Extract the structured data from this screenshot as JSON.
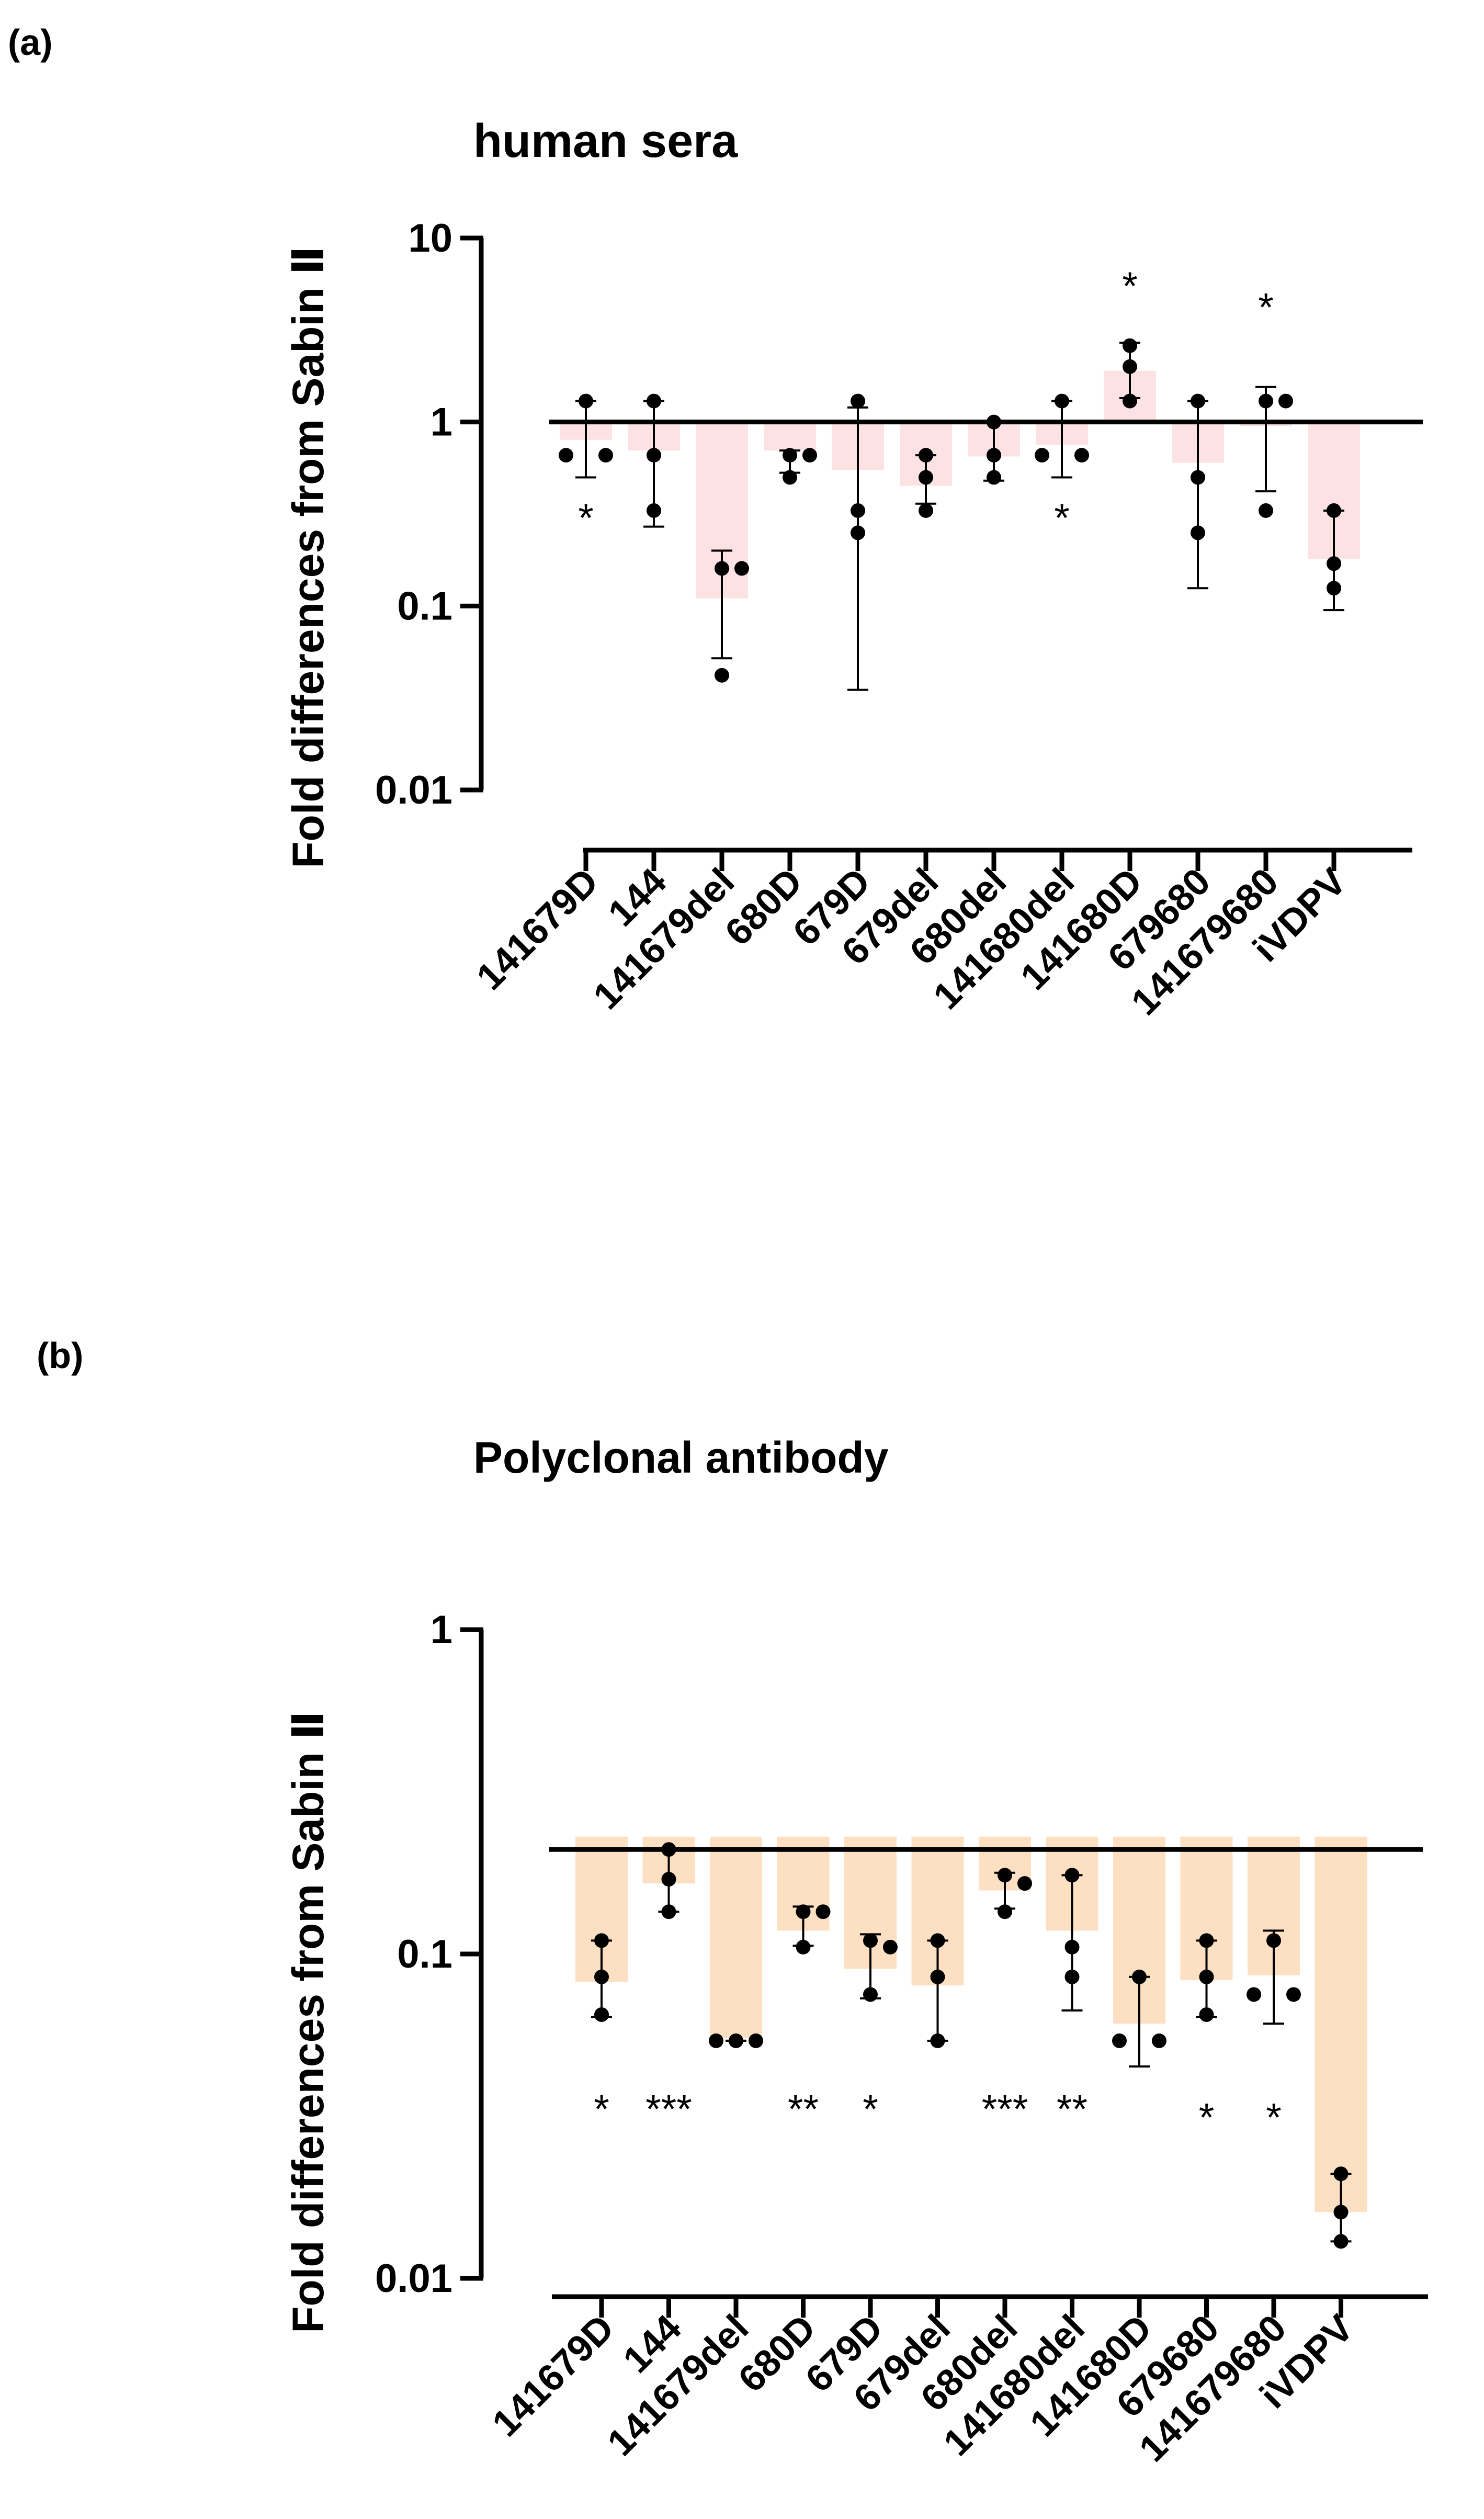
{
  "chart_data": [
    {
      "panel_label": "(a)",
      "type": "bar",
      "scale": "log",
      "title": "human sera",
      "ylabel": "Fold differences from Sabin Ⅱ",
      "xlabel": "",
      "ylim": [
        0.01,
        10
      ],
      "yticks": [
        "10",
        "1",
        "0.1",
        "0.01"
      ],
      "reference_line": 1,
      "bar_color": "#fde2e4",
      "bar_baseline": 1,
      "categories": [
        "141679D",
        "144",
        "141679del",
        "680D",
        "679D",
        "679del",
        "680del",
        "141680del",
        "141680D",
        "679680",
        "141679680",
        "iVDPV"
      ],
      "values": [
        0.8,
        0.7,
        0.11,
        0.7,
        0.55,
        0.45,
        0.65,
        0.75,
        1.9,
        0.6,
        0.95,
        0.18
      ],
      "points": [
        [
          1.3,
          0.66,
          0.66
        ],
        [
          1.3,
          0.66,
          0.33
        ],
        [
          0.16,
          0.16,
          0.042
        ],
        [
          0.66,
          0.66,
          0.5
        ],
        [
          1.3,
          0.33,
          0.25
        ],
        [
          0.66,
          0.5,
          0.33
        ],
        [
          1.0,
          0.66,
          0.5
        ],
        [
          1.3,
          0.66,
          0.66
        ],
        [
          2.6,
          2.0,
          1.3
        ],
        [
          1.3,
          0.5,
          0.25
        ],
        [
          1.3,
          1.3,
          0.33
        ],
        [
          0.33,
          0.17,
          0.125
        ]
      ],
      "err_low": [
        0.5,
        0.27,
        0.052,
        0.53,
        0.035,
        0.36,
        0.48,
        0.5,
        1.35,
        0.125,
        0.42,
        0.095
      ],
      "err_high": [
        1.3,
        1.3,
        0.2,
        0.7,
        1.2,
        0.66,
        1.0,
        1.3,
        2.7,
        1.3,
        1.55,
        0.33
      ],
      "annotations": [
        {
          "category": "141679D",
          "text": "*",
          "value": 0.33
        },
        {
          "category": "141680del",
          "text": "*",
          "value": 0.33
        },
        {
          "category": "141680D",
          "text": "*",
          "value": 6
        },
        {
          "category": "141679680",
          "text": "*",
          "value": 4.6
        }
      ]
    },
    {
      "panel_label": "(b)",
      "type": "bar",
      "scale": "log",
      "title": "Polyclonal antibody",
      "ylabel": "Fold differences from Sabin Ⅱ",
      "xlabel": "",
      "ylim": [
        0.01,
        1
      ],
      "yticks": [
        "1",
        "0.1",
        "0.01"
      ],
      "reference_line": 0.21,
      "bar_color": "#fde0c2",
      "bar_baseline": 0.23,
      "categories": [
        "141679D",
        "144",
        "141679del",
        "680D",
        "679D",
        "679del",
        "680del",
        "141680del",
        "141680D",
        "679680",
        "141679680",
        "iVDPV"
      ],
      "values": [
        0.082,
        0.165,
        0.055,
        0.118,
        0.09,
        0.08,
        0.157,
        0.118,
        0.061,
        0.083,
        0.086,
        0.016
      ],
      "points": [
        [
          0.11,
          0.085,
          0.065
        ],
        [
          0.21,
          0.17,
          0.135
        ],
        [
          0.054,
          0.054,
          0.054
        ],
        [
          0.135,
          0.135,
          0.105
        ],
        [
          0.11,
          0.105,
          0.075
        ],
        [
          0.11,
          0.085,
          0.054
        ],
        [
          0.175,
          0.165,
          0.135
        ],
        [
          0.175,
          0.105,
          0.085
        ],
        [
          0.085,
          0.054,
          0.054
        ],
        [
          0.11,
          0.085,
          0.065
        ],
        [
          0.11,
          0.075,
          0.075
        ],
        [
          0.021,
          0.016,
          0.013
        ]
      ],
      "err_low": [
        0.064,
        0.135,
        0.054,
        0.106,
        0.073,
        0.054,
        0.138,
        0.067,
        0.045,
        0.064,
        0.061,
        0.013
      ],
      "err_high": [
        0.11,
        0.21,
        0.054,
        0.14,
        0.115,
        0.11,
        0.178,
        0.175,
        0.085,
        0.11,
        0.118,
        0.021
      ],
      "annotations": [
        {
          "category": "141679D",
          "text": "*",
          "value": 0.035
        },
        {
          "category": "144",
          "text": "***",
          "value": 0.035
        },
        {
          "category": "680D",
          "text": "**",
          "value": 0.035
        },
        {
          "category": "679D",
          "text": "*",
          "value": 0.035
        },
        {
          "category": "680del",
          "text": "***",
          "value": 0.035
        },
        {
          "category": "141680del",
          "text": "**",
          "value": 0.035
        },
        {
          "category": "679680",
          "text": "*",
          "value": 0.033
        },
        {
          "category": "141679680",
          "text": "*",
          "value": 0.033
        }
      ]
    }
  ]
}
